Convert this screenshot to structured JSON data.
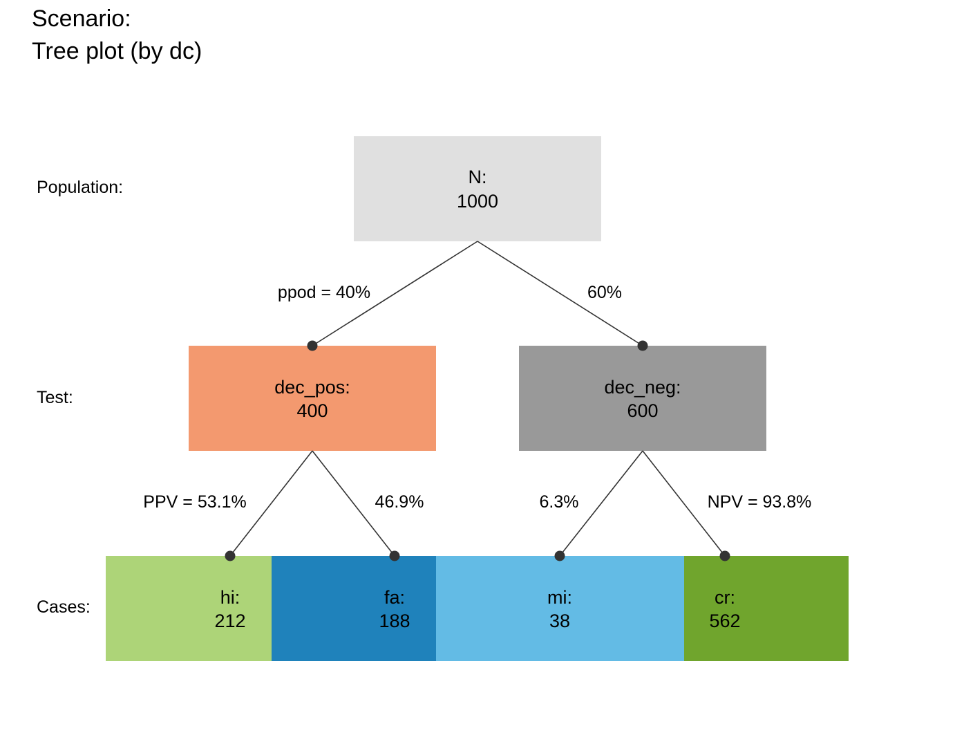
{
  "title": {
    "line1": "Scenario:",
    "line2": "Tree plot (by dc)"
  },
  "rows": {
    "population": "Population:",
    "test": "Test:",
    "cases": "Cases:"
  },
  "nodes": {
    "n": {
      "label": "N:",
      "value": "1000",
      "color": "#e0e0e0"
    },
    "dec_pos": {
      "label": "dec_pos:",
      "value": "400",
      "color": "#f3996f"
    },
    "dec_neg": {
      "label": "dec_neg:",
      "value": "600",
      "color": "#999999"
    },
    "hi": {
      "label": "hi:",
      "value": "212",
      "color": "#add478"
    },
    "fa": {
      "label": "fa:",
      "value": "188",
      "color": "#1f82bb"
    },
    "mi": {
      "label": "mi:",
      "value": "38",
      "color": "#63bbe5"
    },
    "cr": {
      "label": "cr:",
      "value": "562",
      "color": "#70a52d"
    }
  },
  "edges": {
    "n_to_pos": "ppod = 40%",
    "n_to_neg": "60%",
    "pos_to_hi": "PPV = 53.1%",
    "pos_to_fa": "46.9%",
    "neg_to_mi": "6.3%",
    "neg_to_cr": "NPV = 93.8%"
  },
  "line_color": "#333333"
}
